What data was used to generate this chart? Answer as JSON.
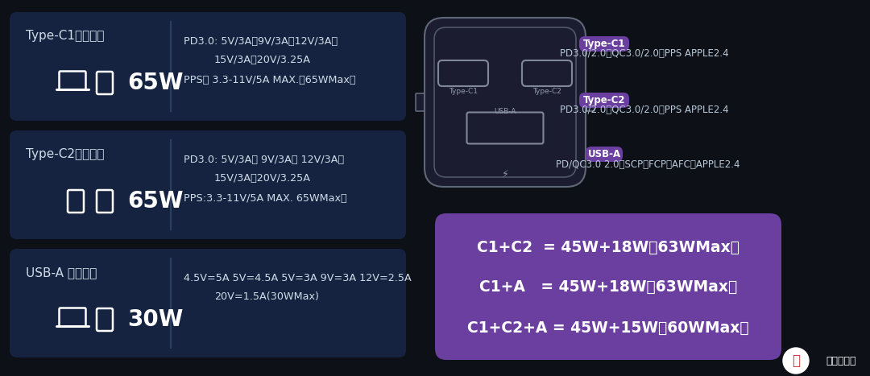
{
  "bg_color": "#0d1117",
  "panel_color": "#152340",
  "purple_color": "#6b3fa0",
  "text_color": "#d0dce8",
  "white": "#ffffff",
  "gray_line": "#2a4060",
  "charger_bg": "#181830",
  "charger_border": "#505870",
  "left_panels": [
    {
      "title": "Type-C1单口输出",
      "wattage": "65W",
      "spec_line1": "PD3.0: 5V/3A、9V/3A、12V/3A、",
      "spec_line2": "15V/3A、20V/3.25A",
      "spec_line3": "PPS： 3.3-11V/5A MAX.（65WMax）",
      "icon_type": "laptop_phone"
    },
    {
      "title": "Type-C2单口输出",
      "wattage": "65W",
      "spec_line1": "PD3.0: 5V/3A、 9V/3A、 12V/3A、",
      "spec_line2": "15V/3A、20V/3.25A",
      "spec_line3": "PPS:3.3-11V/5A MAX. 65WMax）",
      "icon_type": "phone_phone"
    },
    {
      "title": "USB-A 单口输出",
      "wattage": "30W",
      "spec_line1": "4.5V=5A 5V=4.5A 5V=3A 9V=3A 12V=2.5A",
      "spec_line2": "20V=1.5A(30WMax)",
      "spec_line3": "",
      "icon_type": "laptop_phone2"
    }
  ],
  "right_labels": [
    {
      "text": "Type-C1",
      "is_tag": true
    },
    {
      "text": "PD3.0/2.0、QC3.0/2.0、PPS APPLE2.4",
      "is_tag": false
    },
    {
      "text": "Type-C2",
      "is_tag": true
    },
    {
      "text": "PD3.0/2.0、QC3.0/2.0、PPS APPLE2.4",
      "is_tag": false
    },
    {
      "text": "USB-A",
      "is_tag": true
    },
    {
      "text": "PD/QC3.0 2.0、SCP、FCP、AFC、APPLE2.4",
      "is_tag": false
    }
  ],
  "combo_lines": [
    "C1+C2  = 45W+18W（63WMax）",
    "C1+A   = 45W+18W（63WMax）",
    "C1+C2+A = 45W+15W（60WMax）"
  ]
}
